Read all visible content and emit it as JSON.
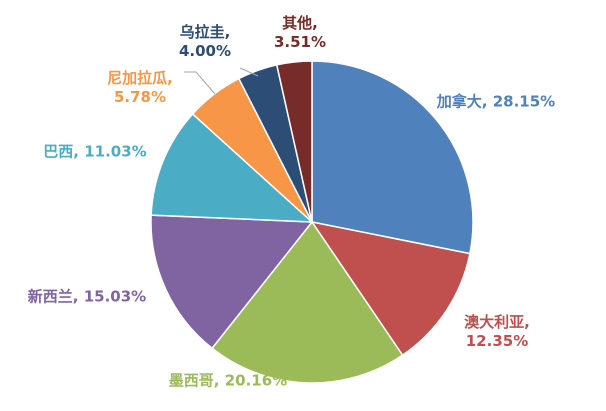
{
  "chart_data": {
    "type": "pie",
    "start": "top",
    "direction": "clockwise",
    "legend": "none",
    "slices": [
      {
        "label": "加拿大",
        "value": 28.15,
        "display": "28.15%",
        "color": "#4F81BD",
        "label_color": "#4F81BD"
      },
      {
        "label": "澳大利亚",
        "value": 12.35,
        "display": "12.35%",
        "color": "#C0504D",
        "label_color": "#C0504D"
      },
      {
        "label": "墨西哥",
        "value": 20.16,
        "display": "20.16%",
        "color": "#9BBB59",
        "label_color": "#9BBB59"
      },
      {
        "label": "新西兰",
        "value": 15.03,
        "display": "15.03%",
        "color": "#8064A2",
        "label_color": "#8064A2"
      },
      {
        "label": "巴西",
        "value": 11.03,
        "display": "11.03%",
        "color": "#4BACC6",
        "label_color": "#4BACC6"
      },
      {
        "label": "尼加拉瓜",
        "value": 5.78,
        "display": "5.78%",
        "color": "#F79646",
        "label_color": "#F79646"
      },
      {
        "label": "乌拉圭",
        "value": 4.0,
        "display": "4.00%",
        "color": "#2C4D75",
        "label_color": "#2C4D75"
      },
      {
        "label": "其他",
        "value": 3.51,
        "display": "3.51%",
        "color": "#772C2A",
        "label_color": "#772C2A"
      }
    ]
  }
}
